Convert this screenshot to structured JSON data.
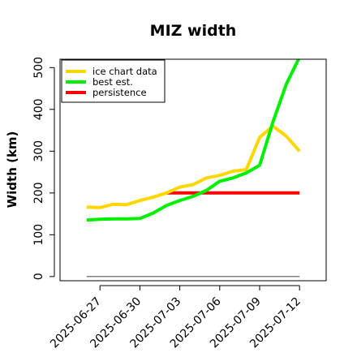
{
  "chart_data": {
    "type": "line",
    "title": "MIZ width",
    "xlabel": "",
    "ylabel": "Width (km)",
    "ylim": [
      -10,
      520
    ],
    "xlim": [
      "2025-06-24",
      "2025-07-14"
    ],
    "yticks": [
      0,
      100,
      200,
      300,
      400,
      500
    ],
    "xticks": [
      "2025-06-27",
      "2025-06-30",
      "2025-07-03",
      "2025-07-06",
      "2025-07-09",
      "2025-07-12"
    ],
    "legend_position": "top-left",
    "grid": false,
    "series": [
      {
        "name": "ice chart data",
        "color": "#FFD700",
        "x": [
          "2025-06-26",
          "2025-06-27",
          "2025-06-28",
          "2025-06-29",
          "2025-06-30",
          "2025-07-01",
          "2025-07-02",
          "2025-07-03",
          "2025-07-04",
          "2025-07-05",
          "2025-07-06",
          "2025-07-07",
          "2025-07-08",
          "2025-07-09",
          "2025-07-10",
          "2025-07-11",
          "2025-07-12"
        ],
        "values": [
          166,
          165,
          173,
          172,
          182,
          190,
          200,
          214,
          220,
          236,
          242,
          252,
          256,
          333,
          360,
          336,
          300
        ]
      },
      {
        "name": "best est.",
        "color": "#00EE00",
        "x": [
          "2025-06-26",
          "2025-06-27",
          "2025-06-28",
          "2025-06-29",
          "2025-06-30",
          "2025-07-01",
          "2025-07-02",
          "2025-07-03",
          "2025-07-04",
          "2025-07-05",
          "2025-07-06",
          "2025-07-07",
          "2025-07-08",
          "2025-07-09",
          "2025-07-10",
          "2025-07-11",
          "2025-07-12"
        ],
        "values": [
          135,
          137,
          138,
          138,
          139,
          152,
          170,
          182,
          192,
          206,
          228,
          236,
          248,
          266,
          370,
          460,
          525
        ]
      },
      {
        "name": "persistence",
        "color": "#FF0000",
        "x": [
          "2025-07-02",
          "2025-07-12"
        ],
        "values": [
          200,
          200
        ]
      },
      {
        "name": "",
        "color": "#808080",
        "x": [
          "2025-06-26",
          "2025-07-12"
        ],
        "values": [
          0,
          0
        ]
      }
    ]
  }
}
